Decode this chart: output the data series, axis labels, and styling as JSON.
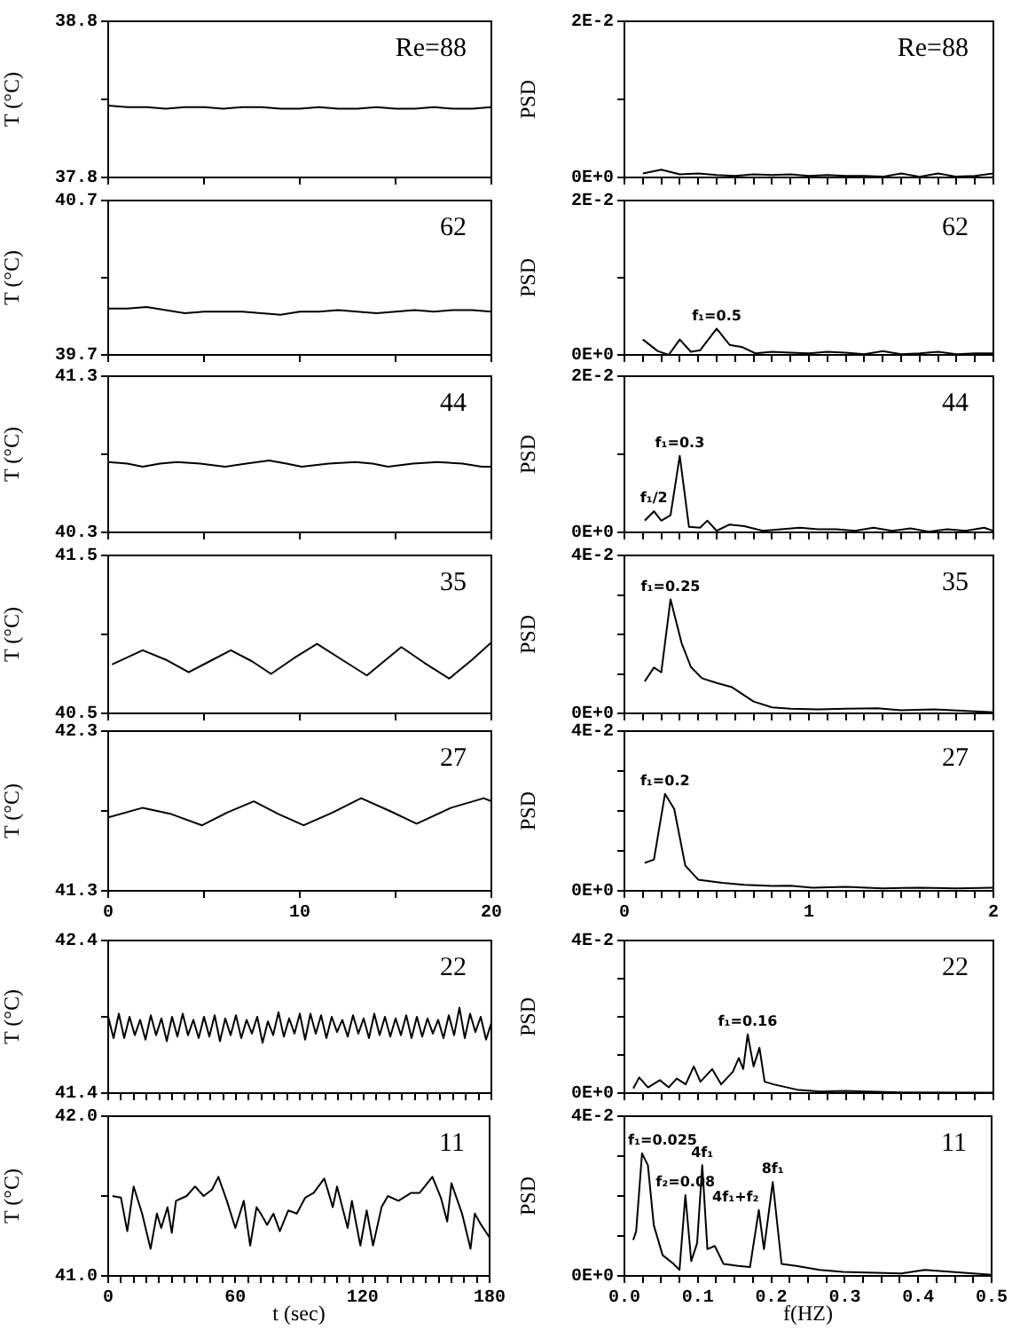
{
  "chart_data": [
    {
      "type": "line",
      "ylabel": "T (°C)",
      "annotations": [
        "Re=88"
      ],
      "xlim": [
        0,
        20
      ],
      "xticks": [
        0,
        {
          "value": 5,
          "label": null
        },
        10,
        {
          "value": 15,
          "label": null
        },
        20
      ],
      "ylim": [
        37.8,
        38.8
      ],
      "yticks": [
        37.8,
        {
          "value": 38.3,
          "label": null
        },
        38.8
      ],
      "tick_labels": "y",
      "x": [
        0,
        1,
        2,
        3,
        4,
        5,
        6,
        7,
        8,
        9,
        10,
        11,
        12,
        13,
        14,
        15,
        16,
        17,
        18,
        19,
        20
      ],
      "series": [
        {
          "color": "#000000",
          "values": [
            38.26,
            38.25,
            38.25,
            38.24,
            38.25,
            38.25,
            38.24,
            38.25,
            38.25,
            38.24,
            38.24,
            38.25,
            38.24,
            38.24,
            38.25,
            38.24,
            38.24,
            38.25,
            38.24,
            38.24,
            38.25
          ]
        }
      ]
    },
    {
      "type": "line",
      "ylabel": "PSD",
      "annotations": [
        "Re=88"
      ],
      "xlim": [
        0,
        2
      ],
      "xticks": [
        0,
        {
          "value": 0.1,
          "label": null
        },
        {
          "value": 0.2,
          "label": null
        },
        {
          "value": 0.3,
          "label": null
        },
        {
          "value": 0.4,
          "label": null
        },
        {
          "value": 0.5,
          "label": null
        },
        {
          "value": 0.6,
          "label": null
        },
        {
          "value": 0.7,
          "label": null
        },
        {
          "value": 0.8,
          "label": null
        },
        {
          "value": 0.9,
          "label": null
        },
        1,
        {
          "value": 1.1,
          "label": null
        },
        {
          "value": 1.2,
          "label": null
        },
        {
          "value": 1.3,
          "label": null
        },
        {
          "value": 1.4,
          "label": null
        },
        {
          "value": 1.5,
          "label": null
        },
        {
          "value": 1.6,
          "label": null
        },
        {
          "value": 1.7,
          "label": null
        },
        {
          "value": 1.8,
          "label": null
        },
        {
          "value": 1.9,
          "label": null
        },
        2
      ],
      "ylim": [
        0,
        0.02
      ],
      "yticks": [
        {
          "value": 0,
          "label": "0E+0"
        },
        {
          "value": 0.01,
          "label": null
        },
        {
          "value": 0.02,
          "label": "2E-2"
        }
      ],
      "tick_labels": "y",
      "x": [
        0.1,
        0.2,
        0.3,
        0.4,
        0.5,
        0.6,
        0.7,
        0.8,
        0.9,
        1.0,
        1.1,
        1.2,
        1.3,
        1.4,
        1.5,
        1.6,
        1.7,
        1.8,
        1.9,
        2.0
      ],
      "series": [
        {
          "color": "#000000",
          "values": [
            0.0005,
            0.001,
            0.0004,
            0.0005,
            0.0003,
            0.0002,
            0.0004,
            0.0003,
            0.0004,
            0.0002,
            0.0003,
            0.0002,
            0.0002,
            0.0001,
            0.0005,
            0.0001,
            0.0005,
            0.0001,
            0.0002,
            0.0005
          ]
        }
      ]
    },
    {
      "type": "line",
      "ylabel": "T (°C)",
      "annotations": [
        "62"
      ],
      "xlim": [
        0,
        20
      ],
      "xticks": [
        0,
        {
          "value": 5,
          "label": null
        },
        10,
        {
          "value": 15,
          "label": null
        },
        20
      ],
      "ylim": [
        39.7,
        40.7
      ],
      "yticks": [
        39.7,
        {
          "value": 40.2,
          "label": null
        },
        40.7
      ],
      "tick_labels": "y",
      "x": [
        0,
        1,
        2,
        3,
        4,
        5,
        6,
        7,
        8,
        9,
        10,
        11,
        12,
        13,
        14,
        15,
        16,
        17,
        18,
        19,
        20
      ],
      "series": [
        {
          "color": "#000000",
          "values": [
            40.0,
            40.0,
            40.01,
            39.99,
            39.97,
            39.98,
            39.98,
            39.98,
            39.97,
            39.96,
            39.98,
            39.98,
            39.99,
            39.98,
            39.97,
            39.98,
            39.99,
            39.98,
            39.99,
            39.99,
            39.98
          ]
        }
      ]
    },
    {
      "type": "line",
      "ylabel": "PSD",
      "annotations": [
        "62",
        {
          "text": "f₁=0.5",
          "x": 0.5,
          "y": 0.0034
        }
      ],
      "xlim": [
        0,
        2
      ],
      "xticks": [
        0,
        {
          "value": 0.1,
          "label": null
        },
        {
          "value": 0.2,
          "label": null
        },
        {
          "value": 0.3,
          "label": null
        },
        {
          "value": 0.4,
          "label": null
        },
        {
          "value": 0.5,
          "label": null
        },
        {
          "value": 0.6,
          "label": null
        },
        {
          "value": 0.7,
          "label": null
        },
        {
          "value": 0.8,
          "label": null
        },
        {
          "value": 0.9,
          "label": null
        },
        1,
        {
          "value": 1.1,
          "label": null
        },
        {
          "value": 1.2,
          "label": null
        },
        {
          "value": 1.3,
          "label": null
        },
        {
          "value": 1.4,
          "label": null
        },
        {
          "value": 1.5,
          "label": null
        },
        {
          "value": 1.6,
          "label": null
        },
        {
          "value": 1.7,
          "label": null
        },
        {
          "value": 1.8,
          "label": null
        },
        {
          "value": 1.9,
          "label": null
        },
        2
      ],
      "ylim": [
        0,
        0.02
      ],
      "yticks": [
        {
          "value": 0,
          "label": "0E+0"
        },
        {
          "value": 0.01,
          "label": null
        },
        {
          "value": 0.02,
          "label": "2E-2"
        }
      ],
      "tick_labels": "y",
      "x": [
        0.1,
        0.18,
        0.24,
        0.3,
        0.36,
        0.41,
        0.5,
        0.57,
        0.64,
        0.71,
        0.8,
        0.9,
        1.0,
        1.1,
        1.2,
        1.3,
        1.4,
        1.5,
        1.6,
        1.7,
        1.8,
        1.9,
        2.0
      ],
      "series": [
        {
          "color": "#000000",
          "values": [
            0.002,
            0.0005,
            0,
            0.002,
            0.0004,
            0.0006,
            0.0034,
            0.0013,
            0.001,
            0.0002,
            0.0004,
            0.0003,
            0.0002,
            0.0004,
            0.0003,
            0.0001,
            0.0005,
            0.0001,
            0.0002,
            0.0004,
            0.0001,
            0.0002,
            0.0002
          ]
        }
      ]
    },
    {
      "type": "line",
      "ylabel": "T (°C)",
      "annotations": [
        "44"
      ],
      "xlim": [
        0,
        20
      ],
      "xticks": [
        0,
        {
          "value": 5,
          "label": null
        },
        10,
        {
          "value": 15,
          "label": null
        },
        20
      ],
      "ylim": [
        40.3,
        41.3
      ],
      "yticks": [
        40.3,
        {
          "value": 40.8,
          "label": null
        },
        41.3
      ],
      "tick_labels": "y",
      "x": [
        0,
        1,
        1.8,
        2.7,
        3.6,
        4.8,
        6.1,
        7.2,
        8.4,
        9.3,
        10.1,
        11.5,
        12.9,
        13.8,
        14.6,
        15.9,
        17.2,
        18.5,
        19.5,
        20
      ],
      "series": [
        {
          "color": "#000000",
          "values": [
            40.75,
            40.74,
            40.72,
            40.74,
            40.75,
            40.74,
            40.72,
            40.74,
            40.76,
            40.74,
            40.72,
            40.74,
            40.75,
            40.74,
            40.72,
            40.74,
            40.75,
            40.74,
            40.72,
            40.72
          ]
        }
      ]
    },
    {
      "type": "line",
      "ylabel": "PSD",
      "annotations": [
        "44",
        {
          "text": "f₁=0.3",
          "x": 0.3,
          "y": 0.0098
        },
        {
          "text": "f₁/2",
          "x": 0.16,
          "y": 0.0027
        }
      ],
      "xlim": [
        0,
        2
      ],
      "xticks": [
        0,
        {
          "value": 0.1,
          "label": null
        },
        {
          "value": 0.2,
          "label": null
        },
        {
          "value": 0.3,
          "label": null
        },
        {
          "value": 0.4,
          "label": null
        },
        {
          "value": 0.5,
          "label": null
        },
        {
          "value": 0.6,
          "label": null
        },
        {
          "value": 0.7,
          "label": null
        },
        {
          "value": 0.8,
          "label": null
        },
        {
          "value": 0.9,
          "label": null
        },
        1,
        {
          "value": 1.1,
          "label": null
        },
        {
          "value": 1.2,
          "label": null
        },
        {
          "value": 1.3,
          "label": null
        },
        {
          "value": 1.4,
          "label": null
        },
        {
          "value": 1.5,
          "label": null
        },
        {
          "value": 1.6,
          "label": null
        },
        {
          "value": 1.7,
          "label": null
        },
        {
          "value": 1.8,
          "label": null
        },
        {
          "value": 1.9,
          "label": null
        },
        2
      ],
      "ylim": [
        0,
        0.02
      ],
      "yticks": [
        {
          "value": 0,
          "label": "0E+0"
        },
        {
          "value": 0.01,
          "label": null
        },
        {
          "value": 0.02,
          "label": "2E-2"
        }
      ],
      "tick_labels": "y",
      "x": [
        0.11,
        0.16,
        0.2,
        0.25,
        0.3,
        0.35,
        0.41,
        0.45,
        0.5,
        0.57,
        0.65,
        0.75,
        0.85,
        0.95,
        1.05,
        1.15,
        1.25,
        1.35,
        1.45,
        1.55,
        1.65,
        1.75,
        1.85,
        1.95,
        2.0
      ],
      "series": [
        {
          "color": "#000000",
          "values": [
            0.0015,
            0.0027,
            0.0015,
            0.0022,
            0.0098,
            0.0007,
            0.0006,
            0.0015,
            0.0002,
            0.001,
            0.0008,
            0.0002,
            0.0004,
            0.0006,
            0.0004,
            0.0004,
            0.0002,
            0.0006,
            0.0002,
            0.0005,
            0.0001,
            0.0004,
            0.0002,
            0.0006,
            0.0002
          ]
        }
      ]
    },
    {
      "type": "line",
      "ylabel": "T (°C)",
      "annotations": [
        "35"
      ],
      "xlim": [
        0,
        20
      ],
      "xticks": [
        0,
        {
          "value": 5,
          "label": null
        },
        10,
        {
          "value": 15,
          "label": null
        },
        20
      ],
      "ylim": [
        40.5,
        41.5
      ],
      "yticks": [
        40.5,
        {
          "value": 41.0,
          "label": null
        },
        41.5
      ],
      "tick_labels": "y",
      "x": [
        0.2,
        1.8,
        3.0,
        4.2,
        5.3,
        6.4,
        7.5,
        8.5,
        9.7,
        10.9,
        12.2,
        13.5,
        14.4,
        15.3,
        16.5,
        17.8,
        19.0,
        20
      ],
      "series": [
        {
          "color": "#000000",
          "values": [
            40.81,
            40.9,
            40.84,
            40.76,
            40.83,
            40.9,
            40.83,
            40.75,
            40.85,
            40.94,
            40.84,
            40.74,
            40.83,
            40.92,
            40.82,
            40.72,
            40.84,
            40.95
          ]
        }
      ]
    },
    {
      "type": "line",
      "ylabel": "PSD",
      "annotations": [
        "35",
        {
          "text": "f₁=0.25",
          "x": 0.25,
          "y": 0.0289
        }
      ],
      "xlim": [
        0,
        2
      ],
      "xticks": [
        0,
        {
          "value": 0.1,
          "label": null
        },
        {
          "value": 0.2,
          "label": null
        },
        {
          "value": 0.3,
          "label": null
        },
        {
          "value": 0.4,
          "label": null
        },
        {
          "value": 0.5,
          "label": null
        },
        {
          "value": 0.6,
          "label": null
        },
        {
          "value": 0.7,
          "label": null
        },
        {
          "value": 0.8,
          "label": null
        },
        {
          "value": 0.9,
          "label": null
        },
        1,
        {
          "value": 1.1,
          "label": null
        },
        {
          "value": 1.2,
          "label": null
        },
        {
          "value": 1.3,
          "label": null
        },
        {
          "value": 1.4,
          "label": null
        },
        {
          "value": 1.5,
          "label": null
        },
        {
          "value": 1.6,
          "label": null
        },
        {
          "value": 1.7,
          "label": null
        },
        {
          "value": 1.8,
          "label": null
        },
        {
          "value": 1.9,
          "label": null
        },
        2
      ],
      "ylim": [
        0,
        0.04
      ],
      "yticks": [
        {
          "value": 0,
          "label": "0E+0"
        },
        {
          "value": 0.01,
          "label": null
        },
        {
          "value": 0.02,
          "label": null
        },
        {
          "value": 0.03,
          "label": null
        },
        {
          "value": 0.04,
          "label": "4E-2"
        }
      ],
      "tick_labels": "y",
      "x": [
        0.11,
        0.16,
        0.2,
        0.25,
        0.31,
        0.36,
        0.42,
        0.5,
        0.58,
        0.7,
        0.8,
        0.9,
        1.05,
        1.2,
        1.37,
        1.5,
        1.68,
        1.85,
        2.0
      ],
      "series": [
        {
          "color": "#000000",
          "values": [
            0.0081,
            0.0116,
            0.0104,
            0.0289,
            0.0178,
            0.0118,
            0.0089,
            0.0077,
            0.0067,
            0.003,
            0.0015,
            0.0012,
            0.001,
            0.0012,
            0.0013,
            0.0008,
            0.001,
            0.0006,
            0.0003
          ]
        }
      ]
    },
    {
      "type": "line",
      "ylabel": "T (°C)",
      "annotations": [
        "27"
      ],
      "xlim": [
        0,
        20
      ],
      "xticks": [
        0,
        {
          "value": 5,
          "label": null
        },
        10,
        {
          "value": 15,
          "label": null
        },
        20
      ],
      "ylim": [
        41.3,
        42.3
      ],
      "yticks": [
        41.3,
        {
          "value": 41.8,
          "label": null
        },
        42.3
      ],
      "x": [
        0,
        1.8,
        3.3,
        4.9,
        6.2,
        7.6,
        8.9,
        10.2,
        11.7,
        13.2,
        14.7,
        16.1,
        17.9,
        19.6,
        20
      ],
      "series": [
        {
          "color": "#000000",
          "values": [
            41.76,
            41.82,
            41.78,
            41.71,
            41.79,
            41.86,
            41.78,
            41.71,
            41.79,
            41.88,
            41.8,
            41.72,
            41.82,
            41.88,
            41.86
          ]
        }
      ]
    },
    {
      "type": "line",
      "ylabel": "PSD",
      "annotations": [
        "27",
        {
          "text": "f₁=0.2",
          "x": 0.22,
          "y": 0.0243
        }
      ],
      "xlim": [
        0,
        2
      ],
      "xticks": [
        0,
        {
          "value": 0.1,
          "label": null
        },
        {
          "value": 0.2,
          "label": null
        },
        {
          "value": 0.3,
          "label": null
        },
        {
          "value": 0.4,
          "label": null
        },
        {
          "value": 0.5,
          "label": null
        },
        {
          "value": 0.6,
          "label": null
        },
        {
          "value": 0.7,
          "label": null
        },
        {
          "value": 0.8,
          "label": null
        },
        {
          "value": 0.9,
          "label": null
        },
        1,
        {
          "value": 1.1,
          "label": null
        },
        {
          "value": 1.2,
          "label": null
        },
        {
          "value": 1.3,
          "label": null
        },
        {
          "value": 1.4,
          "label": null
        },
        {
          "value": 1.5,
          "label": null
        },
        {
          "value": 1.6,
          "label": null
        },
        {
          "value": 1.7,
          "label": null
        },
        {
          "value": 1.8,
          "label": null
        },
        {
          "value": 1.9,
          "label": null
        },
        2
      ],
      "ylim": [
        0,
        0.04
      ],
      "yticks": [
        {
          "value": 0,
          "label": "0E+0"
        },
        {
          "value": 0.01,
          "label": null
        },
        {
          "value": 0.02,
          "label": null
        },
        {
          "value": 0.03,
          "label": null
        },
        {
          "value": 0.04,
          "label": "4E-2"
        }
      ],
      "x": [
        0.11,
        0.16,
        0.22,
        0.27,
        0.33,
        0.4,
        0.53,
        0.65,
        0.8,
        0.9,
        1.02,
        1.2,
        1.4,
        1.6,
        1.8,
        2.0
      ],
      "series": [
        {
          "color": "#000000",
          "values": [
            0.007,
            0.0078,
            0.0243,
            0.0205,
            0.0063,
            0.0028,
            0.002,
            0.0015,
            0.0012,
            0.0013,
            0.0008,
            0.001,
            0.0006,
            0.0008,
            0.0006,
            0.0008
          ]
        }
      ]
    },
    {
      "type": "line",
      "ylabel": "T (°C)",
      "annotations": [
        "22"
      ],
      "xlim": [
        0,
        180
      ],
      "xticks": [
        0,
        {
          "value": 6,
          "label": null
        },
        {
          "value": 12,
          "label": null
        },
        {
          "value": 18,
          "label": null
        },
        {
          "value": 24,
          "label": null
        },
        {
          "value": 30,
          "label": null
        },
        {
          "value": 36,
          "label": null
        },
        {
          "value": 42,
          "label": null
        },
        {
          "value": 48,
          "label": null
        },
        {
          "value": 54,
          "label": null
        },
        60,
        {
          "value": 66,
          "label": null
        },
        {
          "value": 72,
          "label": null
        },
        {
          "value": 78,
          "label": null
        },
        {
          "value": 84,
          "label": null
        },
        {
          "value": 90,
          "label": null
        },
        {
          "value": 96,
          "label": null
        },
        {
          "value": 102,
          "label": null
        },
        {
          "value": 108,
          "label": null
        },
        {
          "value": 114,
          "label": null
        },
        120,
        {
          "value": 126,
          "label": null
        },
        {
          "value": 132,
          "label": null
        },
        {
          "value": 138,
          "label": null
        },
        {
          "value": 144,
          "label": null
        },
        {
          "value": 150,
          "label": null
        },
        {
          "value": 156,
          "label": null
        },
        {
          "value": 162,
          "label": null
        },
        {
          "value": 168,
          "label": null
        },
        {
          "value": 174,
          "label": null
        },
        180
      ],
      "ylim": [
        41.4,
        42.4
      ],
      "yticks": [
        41.4,
        {
          "value": 41.9,
          "label": null
        },
        42.4
      ],
      "tick_labels": "y",
      "x": [
        0,
        2.5,
        5,
        7.5,
        10,
        12.5,
        15,
        17.5,
        20,
        22.5,
        25,
        27.5,
        30,
        32.5,
        35,
        37.5,
        40,
        42.5,
        45,
        47.5,
        50,
        52.5,
        55,
        57.5,
        60,
        62.5,
        65,
        67.5,
        70,
        72.5,
        75,
        77.5,
        80,
        82.5,
        85,
        87.5,
        90,
        92.5,
        95,
        97.5,
        100,
        102.5,
        105,
        107.5,
        110,
        112.5,
        115,
        117.5,
        120,
        122.5,
        125,
        127.5,
        130,
        132.5,
        135,
        137.5,
        140,
        142.5,
        145,
        147.5,
        150,
        152.5,
        155,
        157.5,
        160,
        162.5,
        165,
        167.5,
        170,
        172.5,
        175,
        177.5,
        180
      ],
      "series": [
        {
          "color": "#000000",
          "values": [
            41.9,
            41.76,
            41.92,
            41.76,
            41.9,
            41.78,
            41.88,
            41.75,
            41.91,
            41.78,
            41.89,
            41.74,
            41.9,
            41.77,
            41.92,
            41.78,
            41.88,
            41.76,
            41.9,
            41.77,
            41.91,
            41.74,
            41.89,
            41.78,
            41.91,
            41.76,
            41.88,
            41.79,
            41.9,
            41.73,
            41.87,
            41.78,
            41.93,
            41.77,
            41.89,
            41.79,
            41.92,
            41.75,
            41.92,
            41.79,
            41.91,
            41.76,
            41.9,
            41.8,
            41.88,
            41.77,
            41.91,
            41.79,
            41.89,
            41.76,
            41.92,
            41.78,
            41.9,
            41.77,
            41.89,
            41.78,
            41.91,
            41.76,
            41.9,
            41.77,
            41.89,
            41.79,
            41.88,
            41.76,
            41.91,
            41.78,
            41.96,
            41.76,
            41.92,
            41.8,
            41.9,
            41.75,
            41.86
          ]
        }
      ]
    },
    {
      "type": "line",
      "ylabel": "PSD",
      "annotations": [
        "22",
        {
          "text": "f₁=0.16",
          "x": 0.167,
          "y": 0.0154
        }
      ],
      "xlim": [
        0,
        0.5
      ],
      "xticks": [
        {
          "value": 0,
          "label": null
        },
        {
          "value": 0.025,
          "label": null
        },
        {
          "value": 0.05,
          "label": null
        },
        {
          "value": 0.075,
          "label": null
        },
        0.1,
        {
          "value": 0.125,
          "label": null
        },
        {
          "value": 0.15,
          "label": null
        },
        {
          "value": 0.175,
          "label": null
        },
        0.2,
        {
          "value": 0.225,
          "label": null
        },
        {
          "value": 0.25,
          "label": null
        },
        {
          "value": 0.275,
          "label": null
        },
        0.3,
        {
          "value": 0.325,
          "label": null
        },
        {
          "value": 0.35,
          "label": null
        },
        {
          "value": 0.375,
          "label": null
        },
        0.4,
        {
          "value": 0.425,
          "label": null
        },
        {
          "value": 0.45,
          "label": null
        },
        {
          "value": 0.475,
          "label": null
        },
        0.5
      ],
      "ylim": [
        0,
        0.04
      ],
      "yticks": [
        {
          "value": 0,
          "label": "0E+0"
        },
        {
          "value": 0.01,
          "label": null
        },
        {
          "value": 0.02,
          "label": null
        },
        {
          "value": 0.03,
          "label": null
        },
        {
          "value": 0.04,
          "label": "4E-2"
        }
      ],
      "tick_labels": "y",
      "x": [
        0.012,
        0.02,
        0.032,
        0.048,
        0.06,
        0.071,
        0.083,
        0.094,
        0.103,
        0.119,
        0.131,
        0.147,
        0.155,
        0.161,
        0.167,
        0.175,
        0.183,
        0.19,
        0.202,
        0.234,
        0.266,
        0.298,
        0.377,
        0.5
      ],
      "series": [
        {
          "color": "#000000",
          "values": [
            0.0012,
            0.0041,
            0.0015,
            0.0034,
            0.0015,
            0.0038,
            0.0023,
            0.007,
            0.003,
            0.0063,
            0.0023,
            0.0056,
            0.0092,
            0.0063,
            0.0154,
            0.007,
            0.0119,
            0.003,
            0.0023,
            0.0009,
            0.0004,
            0.0006,
            0.0002,
            0.0001
          ]
        }
      ]
    },
    {
      "type": "line",
      "ylabel": "T (°C)",
      "xlabel": "t (sec)",
      "annotations": [
        "11"
      ],
      "xlim": [
        0,
        180
      ],
      "xticks": [
        0,
        {
          "value": 6,
          "label": null
        },
        {
          "value": 12,
          "label": null
        },
        {
          "value": 18,
          "label": null
        },
        {
          "value": 24,
          "label": null
        },
        {
          "value": 30,
          "label": null
        },
        {
          "value": 36,
          "label": null
        },
        {
          "value": 42,
          "label": null
        },
        {
          "value": 48,
          "label": null
        },
        {
          "value": 54,
          "label": null
        },
        60,
        {
          "value": 66,
          "label": null
        },
        {
          "value": 72,
          "label": null
        },
        {
          "value": 78,
          "label": null
        },
        {
          "value": 84,
          "label": null
        },
        {
          "value": 90,
          "label": null
        },
        {
          "value": 96,
          "label": null
        },
        {
          "value": 102,
          "label": null
        },
        {
          "value": 108,
          "label": null
        },
        {
          "value": 114,
          "label": null
        },
        120,
        {
          "value": 126,
          "label": null
        },
        {
          "value": 132,
          "label": null
        },
        {
          "value": 138,
          "label": null
        },
        {
          "value": 144,
          "label": null
        },
        {
          "value": 150,
          "label": null
        },
        {
          "value": 156,
          "label": null
        },
        {
          "value": 162,
          "label": null
        },
        {
          "value": 168,
          "label": null
        },
        {
          "value": 174,
          "label": null
        },
        180
      ],
      "ylim": [
        41.0,
        42.0
      ],
      "yticks": [
        {
          "value": 41,
          "label": "41.0"
        },
        {
          "value": 41.5,
          "label": null
        },
        {
          "value": 42,
          "label": "42.0"
        }
      ],
      "x": [
        2,
        6,
        9,
        12,
        16,
        20,
        23,
        25,
        28,
        30,
        32,
        37,
        41,
        45,
        49,
        52,
        56,
        60,
        64,
        67,
        70,
        72,
        75,
        78,
        81,
        85,
        89,
        93,
        97,
        102,
        106,
        108,
        113,
        115,
        119,
        122,
        125,
        129,
        132,
        137,
        143,
        147,
        153,
        157,
        160,
        162,
        167,
        171,
        173,
        176,
        180
      ],
      "series": [
        {
          "color": "#000000",
          "values": [
            41.5,
            41.49,
            41.28,
            41.56,
            41.39,
            41.17,
            41.39,
            41.3,
            41.43,
            41.27,
            41.47,
            41.5,
            41.56,
            41.5,
            41.54,
            41.62,
            41.47,
            41.3,
            41.47,
            41.19,
            41.43,
            41.39,
            41.32,
            41.39,
            41.28,
            41.41,
            41.39,
            41.49,
            41.52,
            41.61,
            41.43,
            41.56,
            41.3,
            41.47,
            41.19,
            41.41,
            41.19,
            41.43,
            41.5,
            41.47,
            41.52,
            41.52,
            41.62,
            41.49,
            41.34,
            41.58,
            41.39,
            41.17,
            41.39,
            41.32,
            41.24
          ]
        }
      ]
    },
    {
      "type": "line",
      "ylabel": "PSD",
      "xlabel": "f(HZ)",
      "annotations": [
        "11",
        {
          "text": "f₁=0.025",
          "x": 0.024,
          "y": 0.0307
        },
        {
          "text": "f₂=0.08",
          "x": 0.083,
          "y": 0.0202
        },
        {
          "text": "4f₁",
          "x": 0.106,
          "y": 0.0277
        },
        {
          "text": "4f₁+f₂",
          "x": 0.183,
          "y": 0.0165
        },
        {
          "text": "8f₁",
          "x": 0.202,
          "y": 0.0235
        }
      ],
      "xlim": [
        0,
        0.5
      ],
      "xticks": [
        {
          "value": 0,
          "label": "0.0"
        },
        {
          "value": 0.025,
          "label": null
        },
        {
          "value": 0.05,
          "label": null
        },
        {
          "value": 0.075,
          "label": null
        },
        0.1,
        {
          "value": 0.125,
          "label": null
        },
        {
          "value": 0.15,
          "label": null
        },
        {
          "value": 0.175,
          "label": null
        },
        0.2,
        {
          "value": 0.225,
          "label": null
        },
        {
          "value": 0.25,
          "label": null
        },
        {
          "value": 0.275,
          "label": null
        },
        0.3,
        {
          "value": 0.325,
          "label": null
        },
        {
          "value": 0.35,
          "label": null
        },
        {
          "value": 0.375,
          "label": null
        },
        0.4,
        {
          "value": 0.425,
          "label": null
        },
        {
          "value": 0.45,
          "label": null
        },
        {
          "value": 0.475,
          "label": null
        },
        0.5
      ],
      "ylim": [
        0,
        0.04
      ],
      "yticks": [
        {
          "value": 0,
          "label": "0E+0"
        },
        {
          "value": 0.01,
          "label": null
        },
        {
          "value": 0.02,
          "label": null
        },
        {
          "value": 0.03,
          "label": null
        },
        {
          "value": 0.04,
          "label": "4E-2"
        }
      ],
      "x": [
        0.012,
        0.016,
        0.024,
        0.032,
        0.04,
        0.052,
        0.067,
        0.075,
        0.083,
        0.091,
        0.099,
        0.106,
        0.113,
        0.123,
        0.135,
        0.155,
        0.171,
        0.183,
        0.19,
        0.202,
        0.214,
        0.234,
        0.266,
        0.298,
        0.377,
        0.409,
        0.5
      ],
      "series": [
        {
          "color": "#000000",
          "values": [
            0.009,
            0.0112,
            0.0307,
            0.0277,
            0.0127,
            0.0052,
            0.003,
            0.0015,
            0.0202,
            0.0037,
            0.0082,
            0.0277,
            0.0067,
            0.0075,
            0.003,
            0.0025,
            0.0022,
            0.0165,
            0.0067,
            0.0235,
            0.003,
            0.0025,
            0.0015,
            0.001,
            0.0006,
            0.0015,
            0.0003
          ]
        }
      ]
    }
  ]
}
